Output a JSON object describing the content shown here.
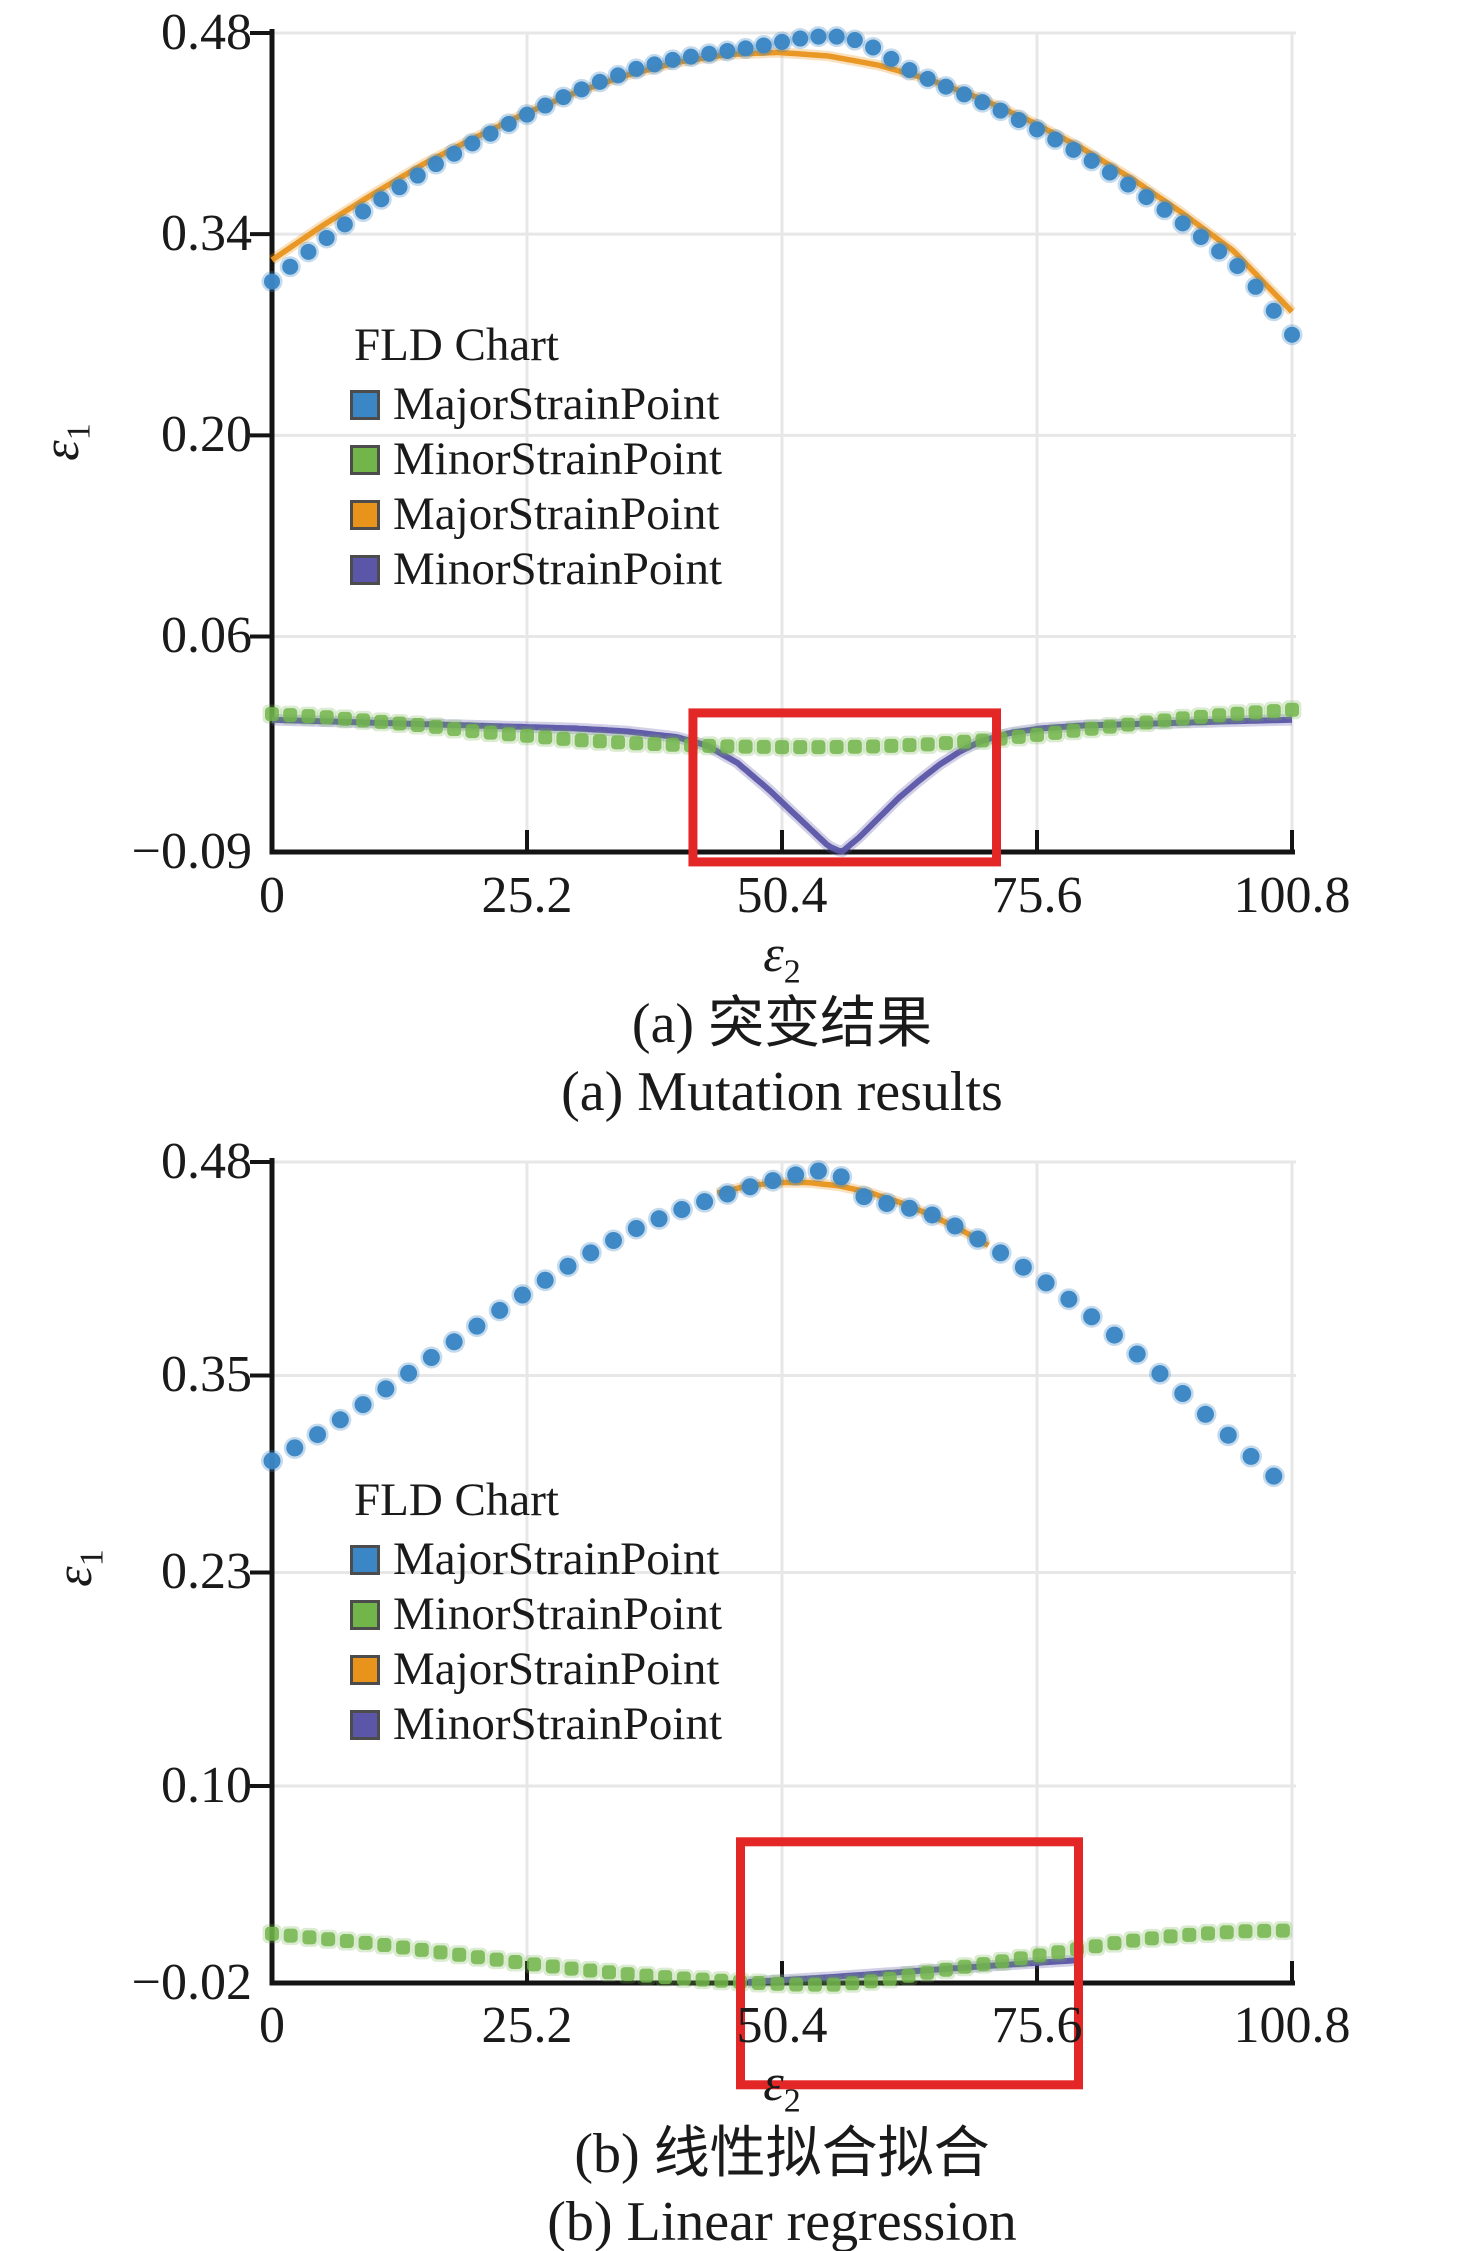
{
  "axis": {
    "x_symbol": "ε",
    "x_subscript": "2",
    "y_symbol": "ε",
    "y_subscript": "1"
  },
  "legend": {
    "title": "FLD Chart",
    "entries": [
      {
        "label": "MajorStrainPoint",
        "color": "#3b86c4"
      },
      {
        "label": "MinorStrainPoint",
        "color": "#72b54b"
      },
      {
        "label": "MajorStrainPoint",
        "color": "#e8941c"
      },
      {
        "label": "MinorStrainPoint",
        "color": "#5b56a7"
      }
    ]
  },
  "captions": {
    "a_zh": "(a) 突变结果",
    "a_en": "(a) Mutation results",
    "b_zh": "(b) 线性拟合拟合",
    "b_en": "(b) Linear regression"
  },
  "colors": {
    "grid": "#e7e7e7",
    "axis_line": "#141414",
    "highlight": "#e32726",
    "blue": "#3b86c4",
    "green": "#72b54b",
    "orange": "#e8941c",
    "purple": "#5b56a7"
  },
  "chart_data": [
    {
      "id": "a",
      "type": "scatter",
      "title": "FLD Chart",
      "xlabel": "ε2",
      "ylabel": "ε1",
      "xlim": [
        0,
        100.8
      ],
      "ylim": [
        -0.09,
        0.48
      ],
      "grid": true,
      "legend_position": "center-left",
      "x_ticks": [
        {
          "v": 0,
          "label": "0"
        },
        {
          "v": 25.2,
          "label": "25.2"
        },
        {
          "v": 50.4,
          "label": "50.4"
        },
        {
          "v": 75.6,
          "label": "75.6"
        },
        {
          "v": 100.8,
          "label": "100.8"
        }
      ],
      "y_ticks": [
        {
          "v": 0.48,
          "label": "0.48"
        },
        {
          "v": 0.34,
          "label": "0.34"
        },
        {
          "v": 0.2,
          "label": "0.20"
        },
        {
          "v": 0.06,
          "label": "0.06"
        },
        {
          "v": -0.09,
          "label": "−0.09"
        }
      ],
      "series": [
        {
          "name": "MajorStrainPoint",
          "kind": "line",
          "color": "#e8941c",
          "width": 5.5,
          "keypoints": [
            [
              0,
              0.322
            ],
            [
              5,
              0.346
            ],
            [
              10,
              0.368
            ],
            [
              15,
              0.389
            ],
            [
              20,
              0.407
            ],
            [
              25,
              0.424
            ],
            [
              30,
              0.4385
            ],
            [
              35,
              0.4505
            ],
            [
              40,
              0.4595
            ],
            [
              45,
              0.465
            ],
            [
              50,
              0.4665
            ],
            [
              55,
              0.464
            ],
            [
              60,
              0.4575
            ],
            [
              65,
              0.4475
            ],
            [
              70,
              0.4345
            ],
            [
              75,
              0.4185
            ],
            [
              80,
              0.4
            ],
            [
              85,
              0.3785
            ],
            [
              90,
              0.3545
            ],
            [
              95,
              0.3285
            ],
            [
              100.8,
              0.286
            ]
          ]
        },
        {
          "name": "MinorStrainPoint",
          "kind": "line",
          "color": "#5b56a7",
          "width": 6,
          "keypoints": [
            [
              0,
              0.002
            ],
            [
              10,
              0.0
            ],
            [
              20,
              -0.002
            ],
            [
              30,
              -0.004
            ],
            [
              35,
              -0.006
            ],
            [
              40,
              -0.01
            ],
            [
              43,
              -0.016
            ],
            [
              46,
              -0.028
            ],
            [
              49,
              -0.046
            ],
            [
              52,
              -0.066
            ],
            [
              55,
              -0.086
            ],
            [
              56.3,
              -0.09
            ],
            [
              58,
              -0.08
            ],
            [
              60,
              -0.066
            ],
            [
              62,
              -0.052
            ],
            [
              64,
              -0.04
            ],
            [
              66,
              -0.029
            ],
            [
              68,
              -0.02
            ],
            [
              70,
              -0.013
            ],
            [
              73,
              -0.007
            ],
            [
              76,
              -0.004
            ],
            [
              80,
              -0.002
            ],
            [
              85,
              -0.001
            ],
            [
              90,
              0.0
            ],
            [
              95,
              0.001
            ],
            [
              100.8,
              0.002
            ]
          ]
        },
        {
          "name": "MinorStrainPoint",
          "kind": "scatter",
          "marker": "square",
          "color": "#72b54b",
          "size": 14,
          "step": 1.8,
          "keypoints": [
            [
              0,
              0.006
            ],
            [
              5,
              0.004
            ],
            [
              10,
              0.001
            ],
            [
              15,
              -0.002
            ],
            [
              20,
              -0.006
            ],
            [
              25,
              -0.009
            ],
            [
              30,
              -0.012
            ],
            [
              35,
              -0.014
            ],
            [
              40,
              -0.0155
            ],
            [
              45,
              -0.0165
            ],
            [
              50,
              -0.017
            ],
            [
              55,
              -0.017
            ],
            [
              60,
              -0.0165
            ],
            [
              65,
              -0.015
            ],
            [
              70,
              -0.0125
            ],
            [
              75,
              -0.009
            ],
            [
              80,
              -0.005
            ],
            [
              85,
              -0.001
            ],
            [
              90,
              0.003
            ],
            [
              95,
              0.006
            ],
            [
              100.8,
              0.009
            ]
          ]
        },
        {
          "name": "MajorStrainPoint",
          "kind": "scatter",
          "marker": "circle",
          "color": "#3b86c4",
          "size": 16,
          "step": 1.8,
          "keypoints": [
            [
              0,
              0.307
            ],
            [
              4,
              0.33
            ],
            [
              8,
              0.351
            ],
            [
              12,
              0.37
            ],
            [
              16,
              0.388
            ],
            [
              20,
              0.404
            ],
            [
              24,
              0.419
            ],
            [
              28,
              0.433
            ],
            [
              32,
              0.445
            ],
            [
              36,
              0.455
            ],
            [
              40,
              0.462
            ],
            [
              44,
              0.4665
            ],
            [
              48,
              0.4705
            ],
            [
              52,
              0.476
            ],
            [
              54,
              0.4775
            ],
            [
              56,
              0.4775
            ],
            [
              58,
              0.4745
            ],
            [
              60,
              0.468
            ],
            [
              62,
              0.458
            ],
            [
              64,
              0.4505
            ],
            [
              66,
              0.4445
            ],
            [
              68,
              0.4385
            ],
            [
              70,
              0.4325
            ],
            [
              72,
              0.426
            ],
            [
              76,
              0.4115
            ],
            [
              80,
              0.3955
            ],
            [
              84,
              0.3775
            ],
            [
              88,
              0.358
            ],
            [
              92,
              0.337
            ],
            [
              96,
              0.3145
            ],
            [
              100.8,
              0.27
            ]
          ]
        }
      ],
      "highlight_rect": {
        "x": [
          41.6,
          71.6
        ],
        "y": [
          0.0068,
          -0.0969
        ],
        "color": "#e32726"
      }
    },
    {
      "id": "b",
      "type": "scatter",
      "title": "FLD Chart",
      "xlabel": "ε2",
      "ylabel": "ε1",
      "xlim": [
        0,
        100.8
      ],
      "ylim": [
        -0.02,
        0.48
      ],
      "grid": true,
      "legend_position": "center-left",
      "x_ticks": [
        {
          "v": 0,
          "label": "0"
        },
        {
          "v": 25.2,
          "label": "25.2"
        },
        {
          "v": 50.4,
          "label": "50.4"
        },
        {
          "v": 75.6,
          "label": "75.6"
        },
        {
          "v": 100.8,
          "label": "100.8"
        }
      ],
      "y_ticks": [
        {
          "v": 0.48,
          "label": "0.48"
        },
        {
          "v": 0.35,
          "label": "0.35"
        },
        {
          "v": 0.23,
          "label": "0.23"
        },
        {
          "v": 0.1,
          "label": "0.10"
        },
        {
          "v": -0.02,
          "label": "−0.02"
        }
      ],
      "series": [
        {
          "name": "MajorStrainPoint",
          "kind": "line",
          "color": "#e8941c",
          "width": 5.5,
          "keypoints": [
            [
              44,
              0.461
            ],
            [
              47,
              0.4655
            ],
            [
              50,
              0.4675
            ],
            [
              53,
              0.4675
            ],
            [
              56,
              0.4655
            ],
            [
              59,
              0.4615
            ],
            [
              62,
              0.4555
            ],
            [
              65,
              0.448
            ],
            [
              68,
              0.439
            ],
            [
              71,
              0.4285
            ]
          ]
        },
        {
          "name": "MinorStrainPoint",
          "kind": "line",
          "color": "#5b56a7",
          "width": 6,
          "keypoints": [
            [
              47,
              -0.0195
            ],
            [
              55,
              -0.0165
            ],
            [
              63,
              -0.013
            ],
            [
              71,
              -0.0095
            ],
            [
              79.9,
              -0.006
            ]
          ]
        },
        {
          "name": "MinorStrainPoint",
          "kind": "scatter",
          "marker": "square",
          "color": "#72b54b",
          "size": 14,
          "step": 1.85,
          "keypoints": [
            [
              0,
              0.01
            ],
            [
              5,
              0.007
            ],
            [
              10,
              0.004
            ],
            [
              15,
              0.0
            ],
            [
              20,
              -0.004
            ],
            [
              25,
              -0.008
            ],
            [
              30,
              -0.0115
            ],
            [
              35,
              -0.0145
            ],
            [
              40,
              -0.017
            ],
            [
              44,
              -0.0185
            ],
            [
              48,
              -0.02
            ],
            [
              52,
              -0.021
            ],
            [
              56,
              -0.021
            ],
            [
              60,
              -0.0185
            ],
            [
              64,
              -0.0145
            ],
            [
              68,
              -0.0105
            ],
            [
              72,
              -0.007
            ],
            [
              76,
              -0.003
            ],
            [
              80,
              0.001
            ],
            [
              84,
              0.005
            ],
            [
              88,
              0.008
            ],
            [
              92,
              0.01
            ],
            [
              96,
              0.0115
            ],
            [
              100.8,
              0.012
            ]
          ]
        },
        {
          "name": "MajorStrainPoint",
          "kind": "scatter",
          "marker": "circle",
          "color": "#3b86c4",
          "size": 17,
          "step": 2.25,
          "keypoints": [
            [
              0,
              0.298
            ],
            [
              4,
              0.312
            ],
            [
              8,
              0.328
            ],
            [
              12,
              0.345
            ],
            [
              16,
              0.362
            ],
            [
              20,
              0.379
            ],
            [
              24,
              0.396
            ],
            [
              28,
              0.412
            ],
            [
              32,
              0.4265
            ],
            [
              36,
              0.4395
            ],
            [
              40,
              0.45
            ],
            [
              44,
              0.4585
            ],
            [
              47,
              0.4645
            ],
            [
              50,
              0.4695
            ],
            [
              52,
              0.4725
            ],
            [
              54,
              0.4745
            ],
            [
              56,
              0.4725
            ],
            [
              58,
              0.46
            ],
            [
              60,
              0.4555
            ],
            [
              62,
              0.4535
            ],
            [
              65,
              0.4485
            ],
            [
              68,
              0.4395
            ],
            [
              71,
              0.4285
            ],
            [
              74,
              0.417
            ],
            [
              78,
              0.4
            ],
            [
              82,
              0.381
            ],
            [
              86,
              0.3605
            ],
            [
              90,
              0.339
            ],
            [
              94,
              0.3165
            ],
            [
              98,
              0.2935
            ],
            [
              100.8,
              0.28
            ]
          ]
        }
      ],
      "highlight_rect": {
        "x": [
          46.3,
          79.7
        ],
        "y": [
          0.066,
          -0.082
        ],
        "color": "#e32726"
      }
    }
  ]
}
